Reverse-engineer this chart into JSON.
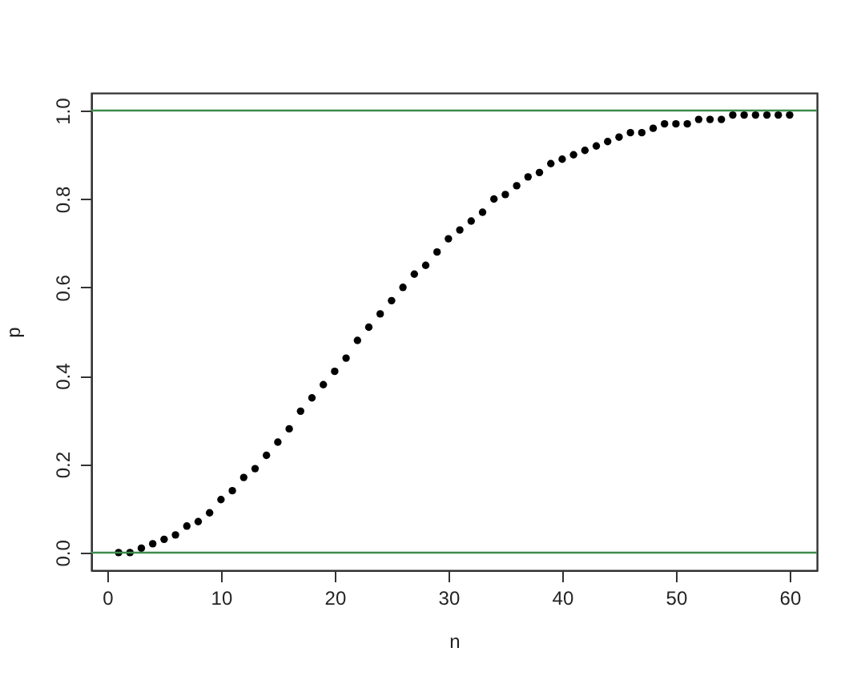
{
  "chart_data": {
    "type": "scatter",
    "xlabel": "n",
    "ylabel": "p",
    "x": [
      1,
      2,
      3,
      4,
      5,
      6,
      7,
      8,
      9,
      10,
      11,
      12,
      13,
      14,
      15,
      16,
      17,
      18,
      19,
      20,
      21,
      22,
      23,
      24,
      25,
      26,
      27,
      28,
      29,
      30,
      31,
      32,
      33,
      34,
      35,
      36,
      37,
      38,
      39,
      40,
      41,
      42,
      43,
      44,
      45,
      46,
      47,
      48,
      49,
      50,
      51,
      52,
      53,
      54,
      55,
      56,
      57,
      58,
      59,
      60
    ],
    "series": [
      {
        "color": "#000000",
        "values": [
          0.0,
          0.0,
          0.01,
          0.02,
          0.03,
          0.04,
          0.06,
          0.07,
          0.09,
          0.12,
          0.14,
          0.17,
          0.19,
          0.22,
          0.25,
          0.28,
          0.32,
          0.35,
          0.38,
          0.41,
          0.44,
          0.48,
          0.51,
          0.54,
          0.57,
          0.6,
          0.63,
          0.65,
          0.68,
          0.71,
          0.73,
          0.75,
          0.77,
          0.8,
          0.81,
          0.83,
          0.85,
          0.86,
          0.88,
          0.89,
          0.9,
          0.91,
          0.92,
          0.93,
          0.94,
          0.95,
          0.95,
          0.96,
          0.97,
          0.97,
          0.97,
          0.98,
          0.98,
          0.98,
          0.99,
          0.99,
          0.99,
          0.99,
          0.99,
          0.99
        ]
      }
    ],
    "xlim": [
      -1.4,
      62.4
    ],
    "ylim": [
      -0.04,
      1.04
    ],
    "xticks": [
      0,
      10,
      20,
      30,
      40,
      50,
      60
    ],
    "yticks": [
      {
        "value": 0,
        "label": "0.0"
      },
      0.2,
      0.4,
      0.6,
      0.8,
      {
        "value": 1,
        "label": "1.0"
      }
    ],
    "ref_lines": [
      {
        "axis": "y",
        "value": 0,
        "color": "#3c8c4c"
      },
      {
        "axis": "y",
        "value": 1,
        "color": "#3c8c4c"
      }
    ],
    "marker": "circle",
    "grid": false,
    "legend": false
  }
}
